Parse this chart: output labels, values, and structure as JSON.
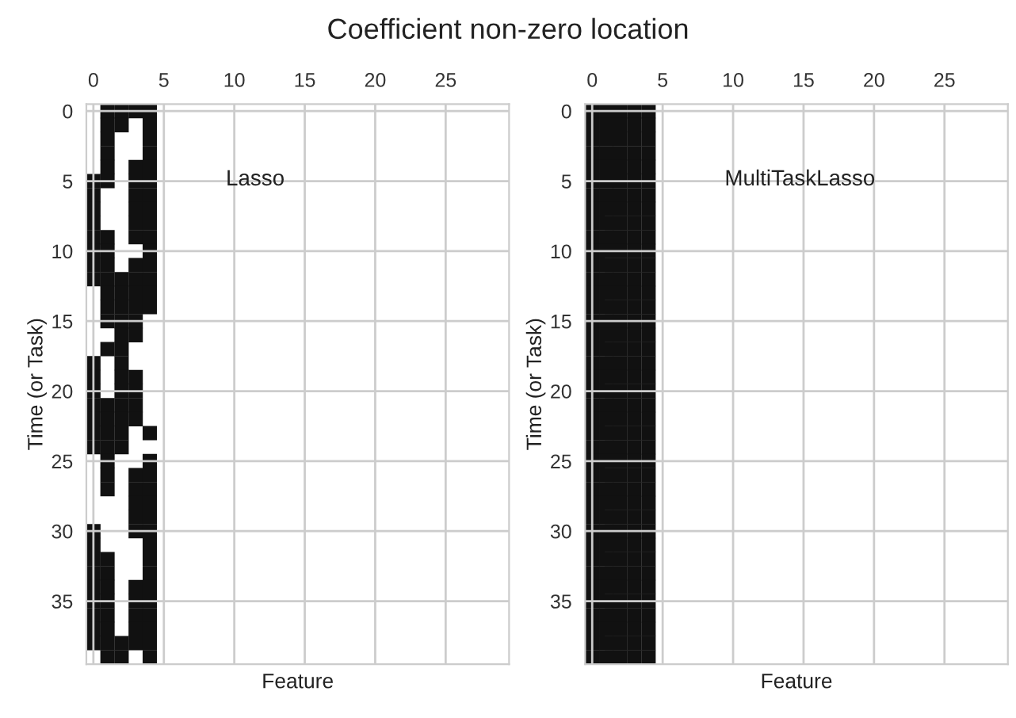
{
  "chart_data": [
    {
      "type": "scatter",
      "title": "Coefficient non-zero location",
      "xlabel": "Feature",
      "ylabel": "Time (or Task)",
      "annotations": [
        "Lasso"
      ],
      "xlim": [
        -0.5,
        29.5
      ],
      "xticks": [
        0,
        5,
        10,
        15,
        20,
        25
      ],
      "ylim": [
        39.5,
        -0.5
      ],
      "yticks": [
        0,
        5,
        10,
        15,
        20,
        25,
        30,
        35
      ],
      "grid": true,
      "marker": "square",
      "series": [
        {
          "color": "#111111",
          "x": [
            1,
            2,
            3,
            4,
            1,
            2,
            4,
            1,
            4,
            1,
            4,
            1,
            3,
            4,
            0,
            1,
            3,
            4,
            0,
            3,
            4,
            0,
            3,
            4,
            0,
            3,
            4,
            0,
            1,
            3,
            4,
            0,
            1,
            4,
            0,
            1,
            3,
            4,
            0,
            1,
            2,
            3,
            4,
            1,
            2,
            3,
            4,
            1,
            2,
            3,
            4,
            1,
            2,
            3,
            2,
            3,
            1,
            2,
            0,
            2,
            0,
            2,
            3,
            0,
            2,
            3,
            0,
            1,
            2,
            3,
            0,
            1,
            2,
            3,
            0,
            1,
            2,
            4,
            0,
            1,
            2,
            1,
            4,
            1,
            3,
            4,
            1,
            3,
            4,
            3,
            4,
            3,
            4,
            0,
            3,
            4,
            0,
            4,
            0,
            1,
            4,
            0,
            1,
            4,
            0,
            1,
            3,
            4,
            0,
            1,
            3,
            4,
            0,
            1,
            3,
            4,
            0,
            1,
            3,
            4,
            0,
            1,
            2,
            3,
            4,
            1,
            2,
            4
          ],
          "values": [
            0,
            0,
            0,
            0,
            1,
            1,
            1,
            2,
            2,
            3,
            3,
            4,
            4,
            4,
            5,
            5,
            5,
            5,
            6,
            6,
            6,
            7,
            7,
            7,
            8,
            8,
            8,
            9,
            9,
            9,
            9,
            10,
            10,
            10,
            11,
            11,
            11,
            11,
            12,
            12,
            12,
            12,
            12,
            13,
            13,
            13,
            13,
            14,
            14,
            14,
            14,
            15,
            15,
            15,
            16,
            16,
            17,
            17,
            18,
            18,
            19,
            19,
            19,
            20,
            20,
            20,
            21,
            21,
            21,
            21,
            22,
            22,
            22,
            22,
            23,
            23,
            23,
            23,
            24,
            24,
            24,
            25,
            25,
            26,
            26,
            26,
            27,
            27,
            27,
            28,
            28,
            29,
            29,
            30,
            30,
            30,
            31,
            31,
            32,
            32,
            32,
            33,
            33,
            33,
            34,
            34,
            34,
            34,
            35,
            35,
            35,
            35,
            36,
            36,
            36,
            36,
            37,
            37,
            37,
            37,
            38,
            38,
            38,
            38,
            38,
            39,
            39,
            39
          ]
        }
      ]
    },
    {
      "type": "scatter",
      "xlabel": "Feature",
      "ylabel": "Time (or Task)",
      "annotations": [
        "MultiTaskLasso"
      ],
      "xlim": [
        -0.5,
        29.5
      ],
      "xticks": [
        0,
        5,
        10,
        15,
        20,
        25
      ],
      "ylim": [
        39.5,
        -0.5
      ],
      "yticks": [
        0,
        5,
        10,
        15,
        20,
        25,
        30,
        35
      ],
      "grid": true,
      "marker": "square",
      "series": [
        {
          "color": "#111111",
          "x": [
            0,
            1,
            2,
            3,
            4,
            0,
            1,
            2,
            3,
            4,
            0,
            1,
            2,
            3,
            4,
            0,
            1,
            2,
            3,
            4,
            0,
            1,
            2,
            3,
            4,
            0,
            1,
            2,
            3,
            4,
            0,
            1,
            2,
            3,
            4,
            0,
            1,
            2,
            3,
            4,
            0,
            1,
            2,
            3,
            4,
            0,
            1,
            2,
            3,
            4,
            0,
            1,
            2,
            3,
            4,
            0,
            1,
            2,
            3,
            4,
            0,
            1,
            2,
            3,
            4,
            0,
            1,
            2,
            3,
            4,
            0,
            1,
            2,
            3,
            4,
            0,
            1,
            2,
            3,
            4,
            0,
            1,
            2,
            3,
            4,
            0,
            1,
            2,
            3,
            4,
            0,
            1,
            2,
            3,
            4,
            0,
            1,
            2,
            3,
            4,
            0,
            1,
            2,
            3,
            4,
            0,
            1,
            2,
            3,
            4,
            0,
            1,
            2,
            3,
            4,
            0,
            1,
            2,
            3,
            4,
            0,
            1,
            2,
            3,
            4,
            0,
            1,
            2,
            3,
            4,
            0,
            1,
            2,
            3,
            4,
            0,
            1,
            2,
            3,
            4,
            0,
            1,
            2,
            3,
            4,
            0,
            1,
            2,
            3,
            4,
            0,
            1,
            2,
            3,
            4,
            0,
            1,
            2,
            3,
            4,
            0,
            1,
            2,
            3,
            4,
            0,
            1,
            2,
            3,
            4,
            0,
            1,
            2,
            3,
            4,
            0,
            1,
            2,
            3,
            4,
            0,
            1,
            2,
            3,
            4,
            0,
            1,
            2,
            3,
            4,
            0,
            1,
            2,
            3,
            4,
            0,
            1,
            2,
            3,
            4
          ],
          "values": [
            0,
            0,
            0,
            0,
            0,
            1,
            1,
            1,
            1,
            1,
            2,
            2,
            2,
            2,
            2,
            3,
            3,
            3,
            3,
            3,
            4,
            4,
            4,
            4,
            4,
            5,
            5,
            5,
            5,
            5,
            6,
            6,
            6,
            6,
            6,
            7,
            7,
            7,
            7,
            7,
            8,
            8,
            8,
            8,
            8,
            9,
            9,
            9,
            9,
            9,
            10,
            10,
            10,
            10,
            10,
            11,
            11,
            11,
            11,
            11,
            12,
            12,
            12,
            12,
            12,
            13,
            13,
            13,
            13,
            13,
            14,
            14,
            14,
            14,
            14,
            15,
            15,
            15,
            15,
            15,
            16,
            16,
            16,
            16,
            16,
            17,
            17,
            17,
            17,
            17,
            18,
            18,
            18,
            18,
            18,
            19,
            19,
            19,
            19,
            19,
            20,
            20,
            20,
            20,
            20,
            21,
            21,
            21,
            21,
            21,
            22,
            22,
            22,
            22,
            22,
            23,
            23,
            23,
            23,
            23,
            24,
            24,
            24,
            24,
            24,
            25,
            25,
            25,
            25,
            25,
            26,
            26,
            26,
            26,
            26,
            27,
            27,
            27,
            27,
            27,
            28,
            28,
            28,
            28,
            28,
            29,
            29,
            29,
            29,
            29,
            30,
            30,
            30,
            30,
            30,
            31,
            31,
            31,
            31,
            31,
            32,
            32,
            32,
            32,
            32,
            33,
            33,
            33,
            33,
            33,
            34,
            34,
            34,
            34,
            34,
            35,
            35,
            35,
            35,
            35,
            36,
            36,
            36,
            36,
            36,
            37,
            37,
            37,
            37,
            37,
            38,
            38,
            38,
            38,
            38,
            39,
            39,
            39,
            39,
            39
          ]
        }
      ]
    }
  ]
}
